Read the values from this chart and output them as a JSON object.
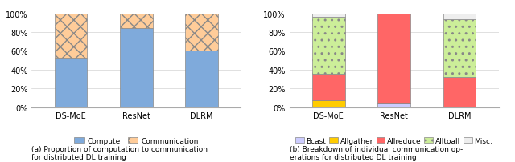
{
  "chart1": {
    "categories": [
      "DS-MoE",
      "ResNet",
      "DLRM"
    ],
    "compute": [
      0.53,
      0.84,
      0.6
    ],
    "communication": [
      0.47,
      0.16,
      0.4
    ],
    "compute_color": "#7FAADB",
    "communication_color": "#FFCC99",
    "communication_hatch": "xxx"
  },
  "chart2": {
    "categories": [
      "DS-MoE",
      "ResNet",
      "DLRM"
    ],
    "bcast": [
      0.0,
      0.04,
      0.0
    ],
    "allgather": [
      0.08,
      0.0,
      0.0
    ],
    "allreduce": [
      0.28,
      0.96,
      0.32
    ],
    "alltoall": [
      0.6,
      0.0,
      0.62
    ],
    "misc": [
      0.04,
      0.0,
      0.06
    ],
    "bcast_color": "#CCCCFF",
    "allgather_color": "#FFCC00",
    "allreduce_color": "#FF6666",
    "alltoall_color": "#CCEE99",
    "misc_color": "#EEEEEE"
  },
  "caption_left": "(a) Proportion of computation to communication\nfor distributed DL training",
  "caption_right": "(b) Breakdown of individual communication op-\nerations for distributed DL training"
}
